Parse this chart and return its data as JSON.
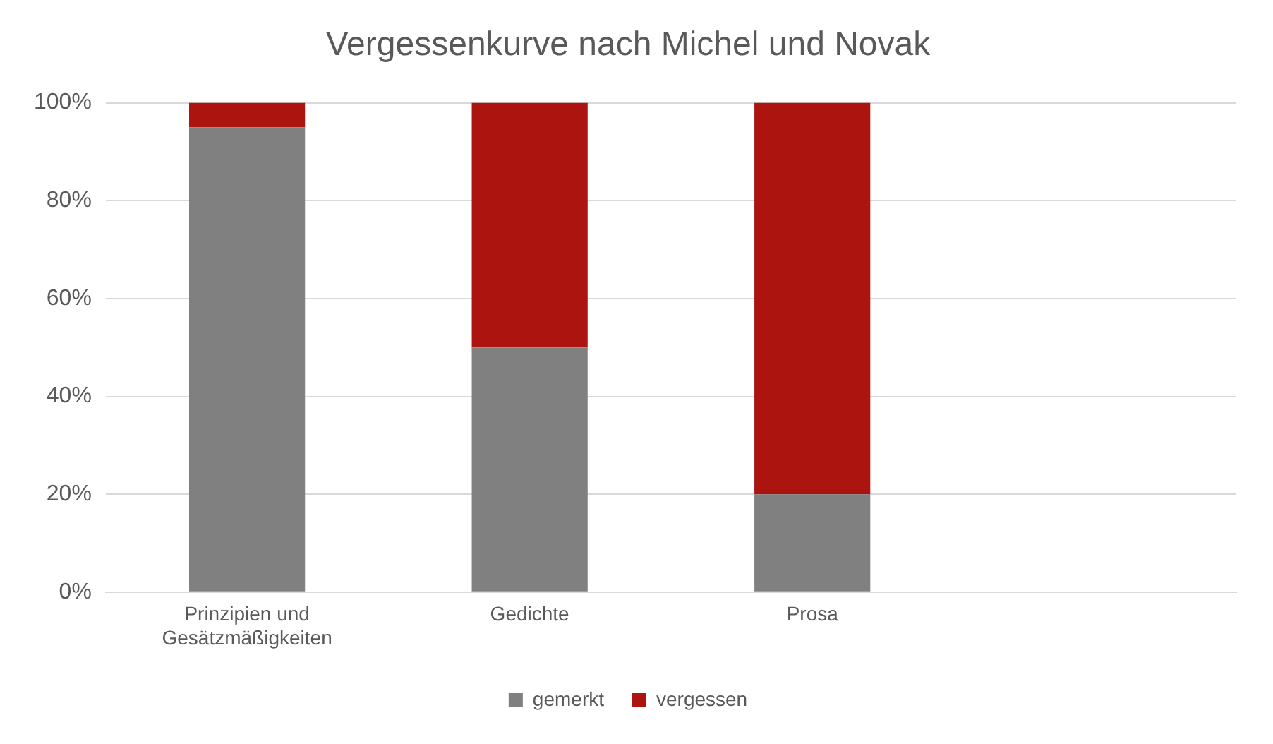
{
  "chart_data": {
    "type": "bar",
    "title": "Vergessenkurve nach Michel und Novak",
    "categories": [
      "Prinzipien und Gesätzmäßigkeiten",
      "Gedichte",
      "Prosa",
      null
    ],
    "stacked": true,
    "series": [
      {
        "name": "gemerkt",
        "color": "#808080",
        "values": [
          95,
          50,
          20,
          null
        ]
      },
      {
        "name": "vergessen",
        "color": "#ac1410",
        "values": [
          5,
          50,
          80,
          null
        ]
      }
    ],
    "ylim": [
      0,
      100
    ],
    "yticks": [
      {
        "value": 0,
        "label": "0%"
      },
      {
        "value": 20,
        "label": "20%"
      },
      {
        "value": 40,
        "label": "40%"
      },
      {
        "value": 60,
        "label": "60%"
      },
      {
        "value": 80,
        "label": "80%"
      },
      {
        "value": 100,
        "label": "100%"
      }
    ],
    "grid": "y",
    "legend": "bottom"
  }
}
